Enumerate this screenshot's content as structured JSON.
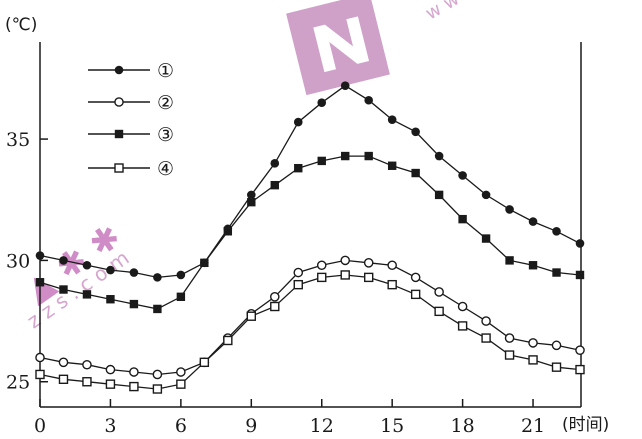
{
  "chart_data": {
    "type": "line",
    "ylabel": "(℃)",
    "xlabel": "(时间)",
    "xlim": [
      0,
      23
    ],
    "ylim": [
      24,
      39
    ],
    "x_ticks": [
      0,
      3,
      6,
      9,
      12,
      15,
      18,
      21
    ],
    "y_ticks": [
      25,
      30,
      35
    ],
    "grid": false,
    "legend_position": "top-left",
    "x": [
      0,
      1,
      2,
      3,
      4,
      5,
      6,
      7,
      8,
      9,
      10,
      11,
      12,
      13,
      14,
      15,
      16,
      17,
      18,
      19,
      20,
      21,
      22,
      23
    ],
    "series": [
      {
        "name": "①",
        "marker": "filled-circle",
        "values": [
          30.2,
          30.0,
          29.8,
          29.6,
          29.5,
          29.3,
          29.4,
          29.9,
          31.3,
          32.7,
          34.0,
          35.7,
          36.5,
          37.2,
          36.6,
          35.8,
          35.3,
          34.3,
          33.5,
          32.7,
          32.1,
          31.6,
          31.2,
          30.7
        ]
      },
      {
        "name": "②",
        "marker": "open-circle",
        "values": [
          26.0,
          25.8,
          25.7,
          25.5,
          25.4,
          25.3,
          25.4,
          25.8,
          26.8,
          27.8,
          28.5,
          29.5,
          29.8,
          30.0,
          29.9,
          29.8,
          29.3,
          28.7,
          28.1,
          27.5,
          26.8,
          26.6,
          26.5,
          26.3
        ]
      },
      {
        "name": "③",
        "marker": "filled-square",
        "values": [
          29.1,
          28.8,
          28.6,
          28.4,
          28.2,
          28.0,
          28.5,
          29.9,
          31.2,
          32.4,
          33.1,
          33.8,
          34.1,
          34.3,
          34.3,
          33.9,
          33.6,
          32.7,
          31.7,
          30.9,
          30.0,
          29.8,
          29.5,
          29.4
        ]
      },
      {
        "name": "④",
        "marker": "open-square",
        "values": [
          25.3,
          25.1,
          25.0,
          24.9,
          24.8,
          24.7,
          24.9,
          25.8,
          26.7,
          27.7,
          28.1,
          29.0,
          29.3,
          29.4,
          29.3,
          29.0,
          28.6,
          27.9,
          27.3,
          26.8,
          26.1,
          25.9,
          25.6,
          25.5
        ]
      }
    ]
  }
}
